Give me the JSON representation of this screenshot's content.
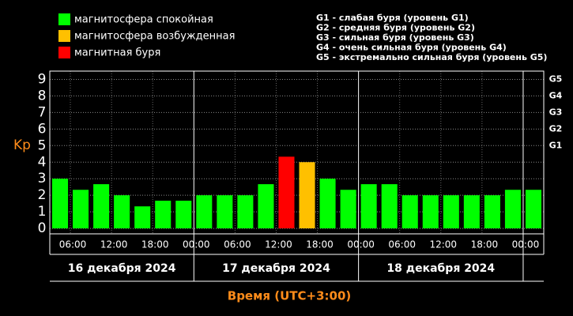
{
  "chart_data": {
    "type": "bar",
    "legend": [
      {
        "label": "магнитосфера спокойная",
        "color": "#00ff00"
      },
      {
        "label": "магнитосфера возбужденная",
        "color": "#ffc000"
      },
      {
        "label": "магнитная буря",
        "color": "#ff0000"
      }
    ],
    "notes": [
      "G1 - слабая буря (уровень G1)",
      "G2 - средняя буря (уровень G2)",
      "G3 - сильная буря (уровень G3)",
      "G4 - очень сильная буря (уровень G4)",
      "G5 - экстремально сильная буря (уровень G5)"
    ],
    "ylabel": "Kp",
    "xlabel": "Время (UTC+3:00)",
    "x": [
      4.5,
      7.5,
      10.5,
      13.5,
      16.5,
      19.5,
      22.5,
      25.5,
      28.5,
      31.5,
      34.5,
      37.5,
      40.5,
      43.5,
      46.5,
      49.5,
      52.5,
      55.5,
      58.5,
      61.5,
      64.5,
      67.5,
      70.5,
      73.5
    ],
    "values": [
      3.0,
      2.33,
      2.67,
      2.0,
      1.33,
      1.67,
      1.67,
      2.0,
      2.0,
      2.0,
      2.67,
      4.33,
      4.0,
      3.0,
      2.33,
      2.67,
      2.67,
      2.0,
      2.0,
      2.0,
      2.0,
      2.0,
      2.33,
      2.33
    ],
    "colors": [
      "#00ff00",
      "#00ff00",
      "#00ff00",
      "#00ff00",
      "#00ff00",
      "#00ff00",
      "#00ff00",
      "#00ff00",
      "#00ff00",
      "#00ff00",
      "#00ff00",
      "#ff0000",
      "#ffc000",
      "#00ff00",
      "#00ff00",
      "#00ff00",
      "#00ff00",
      "#00ff00",
      "#00ff00",
      "#00ff00",
      "#00ff00",
      "#00ff00",
      "#00ff00",
      "#00ff00"
    ],
    "xlim": [
      3,
      75
    ],
    "xticks": [
      {
        "value": 6,
        "label": "06:00"
      },
      {
        "value": 12,
        "label": "12:00"
      },
      {
        "value": 18,
        "label": "18:00"
      },
      {
        "value": 24,
        "label": "00:00"
      },
      {
        "value": 30,
        "label": "06:00"
      },
      {
        "value": 36,
        "label": "12:00"
      },
      {
        "value": 42,
        "label": "18:00"
      },
      {
        "value": 48,
        "label": "00:00"
      },
      {
        "value": 54,
        "label": "06:00"
      },
      {
        "value": 60,
        "label": "12:00"
      },
      {
        "value": 66,
        "label": "18:00"
      },
      {
        "value": 72,
        "label": "00:00"
      }
    ],
    "days": [
      {
        "label": "16 декабря 2024",
        "start": 3,
        "end": 24
      },
      {
        "label": "17 декабря 2024",
        "start": 24,
        "end": 48
      },
      {
        "label": "18 декабря 2024",
        "start": 48,
        "end": 72
      }
    ],
    "ylim": [
      -0.33,
      9.5
    ],
    "yticks": [
      0,
      1,
      2,
      3,
      4,
      5,
      6,
      7,
      8,
      9
    ],
    "y2lim": [
      -0.33,
      9.5
    ],
    "y2ticks": [
      {
        "value": 5,
        "label": "G1"
      },
      {
        "value": 6,
        "label": "G2"
      },
      {
        "value": 7,
        "label": "G3"
      },
      {
        "value": 8,
        "label": "G4"
      },
      {
        "value": 9,
        "label": "G5"
      }
    ],
    "grid": true
  }
}
